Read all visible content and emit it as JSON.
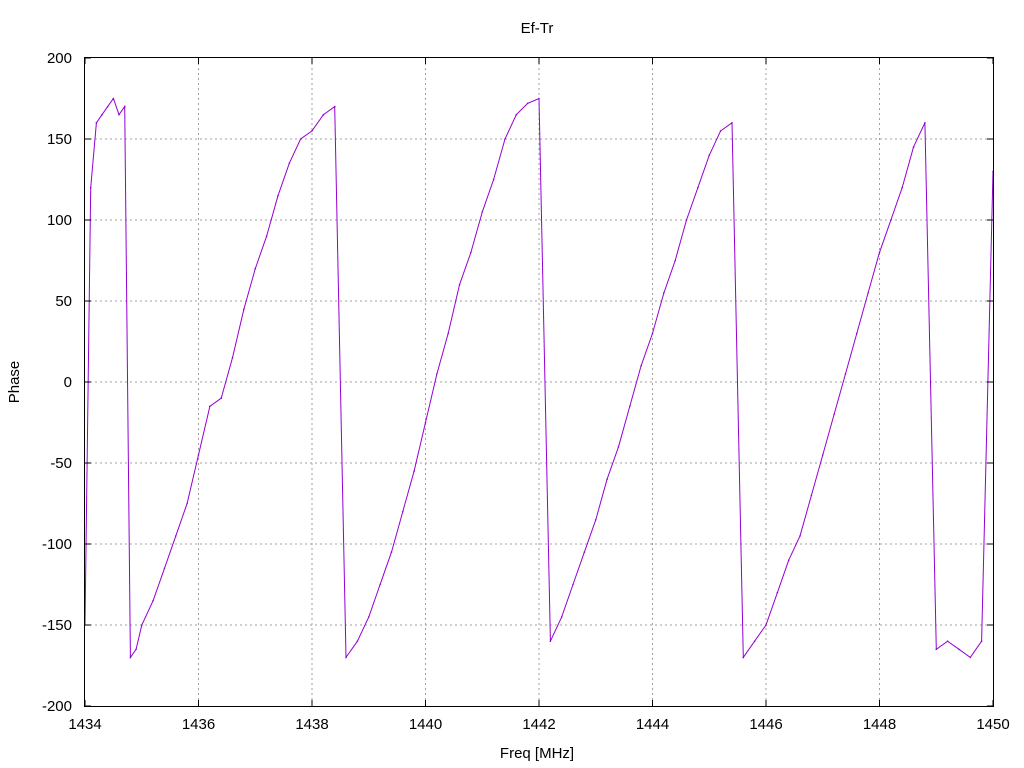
{
  "chart_data": {
    "type": "line",
    "title": "Ef-Tr",
    "xlabel": "Freq [MHz]",
    "ylabel": "Phase",
    "xlim": [
      1434,
      1450
    ],
    "ylim": [
      -200,
      200
    ],
    "x_ticks": [
      "1434",
      "1436",
      "1438",
      "1440",
      "1442",
      "1444",
      "1446",
      "1448",
      "1450"
    ],
    "y_ticks": [
      "200",
      "150",
      "100",
      "50",
      "0",
      "-50",
      "-100",
      "-150",
      "-200"
    ],
    "grid": true,
    "series": [
      {
        "color": "#9400d3",
        "x": [
          1434.0,
          1434.1,
          1434.2,
          1434.3,
          1434.4,
          1434.5,
          1434.6,
          1434.7,
          1434.8,
          1434.9,
          1435.0,
          1435.2,
          1435.4,
          1435.6,
          1435.8,
          1436.0,
          1436.2,
          1436.4,
          1436.6,
          1436.8,
          1437.0,
          1437.2,
          1437.4,
          1437.6,
          1437.8,
          1438.0,
          1438.2,
          1438.4,
          1438.6,
          1438.8,
          1439.0,
          1439.2,
          1439.4,
          1439.6,
          1439.8,
          1440.0,
          1440.2,
          1440.4,
          1440.6,
          1440.8,
          1441.0,
          1441.2,
          1441.4,
          1441.6,
          1441.8,
          1442.0,
          1442.2,
          1442.4,
          1442.6,
          1442.8,
          1443.0,
          1443.2,
          1443.4,
          1443.6,
          1443.8,
          1444.0,
          1444.2,
          1444.4,
          1444.6,
          1444.8,
          1445.0,
          1445.2,
          1445.4,
          1445.6,
          1445.8,
          1446.0,
          1446.2,
          1446.4,
          1446.6,
          1446.8,
          1447.0,
          1447.2,
          1447.4,
          1447.6,
          1447.8,
          1448.0,
          1448.2,
          1448.4,
          1448.6,
          1448.8,
          1449.0,
          1449.2,
          1449.4,
          1449.6,
          1449.8,
          1450.0
        ],
        "y": [
          -150,
          120,
          160,
          165,
          170,
          175,
          165,
          170,
          -170,
          -165,
          -150,
          -135,
          -115,
          -95,
          -75,
          -45,
          -15,
          -10,
          15,
          45,
          70,
          90,
          115,
          135,
          150,
          155,
          165,
          170,
          -170,
          -160,
          -145,
          -125,
          -105,
          -80,
          -55,
          -25,
          5,
          30,
          60,
          80,
          105,
          125,
          150,
          165,
          172,
          175,
          -160,
          -145,
          -125,
          -105,
          -85,
          -60,
          -40,
          -15,
          10,
          30,
          55,
          75,
          100,
          120,
          140,
          155,
          160,
          -170,
          -160,
          -150,
          -130,
          -110,
          -95,
          -70,
          -45,
          -20,
          5,
          30,
          55,
          80,
          100,
          120,
          145,
          160,
          -165,
          -160,
          -165,
          -170,
          -160,
          130
        ]
      }
    ]
  }
}
